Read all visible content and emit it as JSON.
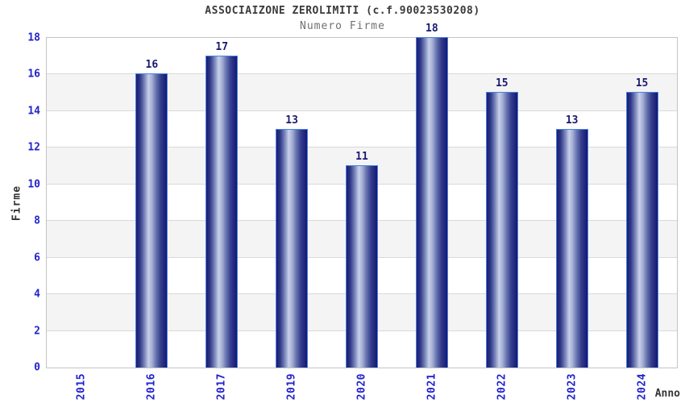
{
  "header": {
    "title": "ASSOCIAIZONE ZEROLIMITI (c.f.90023530208)",
    "subtitle": "Numero Firme"
  },
  "colors": {
    "title_color": "#3a3a3a",
    "subtitle_color": "#707070",
    "axis_title_color": "#333333",
    "tick_color": "#2222cc",
    "value_color": "#191970",
    "bar_dark": "#1c1c74",
    "bar_light": "#c7cfe9",
    "bar_border": "#4584e4",
    "band_color": "#f4f4f4",
    "grid_color": "#d9d9d9",
    "axis_border": "#c4c4c4"
  },
  "chart_data": {
    "type": "bar",
    "title": "ASSOCIAIZONE ZEROLIMITI (c.f.90023530208)",
    "subtitle": "Numero Firme",
    "categories": [
      "2015",
      "2016",
      "2017",
      "2019",
      "2020",
      "2021",
      "2022",
      "2023",
      "2024"
    ],
    "values": [
      0,
      16,
      17,
      13,
      11,
      18,
      15,
      13,
      15
    ],
    "xlabel": "Anno",
    "ylabel": "Firme",
    "ylim": [
      0,
      18
    ],
    "ytick_step": 2,
    "yticks": [
      0,
      2,
      4,
      6,
      8,
      10,
      12,
      14,
      16,
      18
    ],
    "grid": true,
    "alternating_bands": true,
    "legend": false,
    "bar_label_show": true
  }
}
